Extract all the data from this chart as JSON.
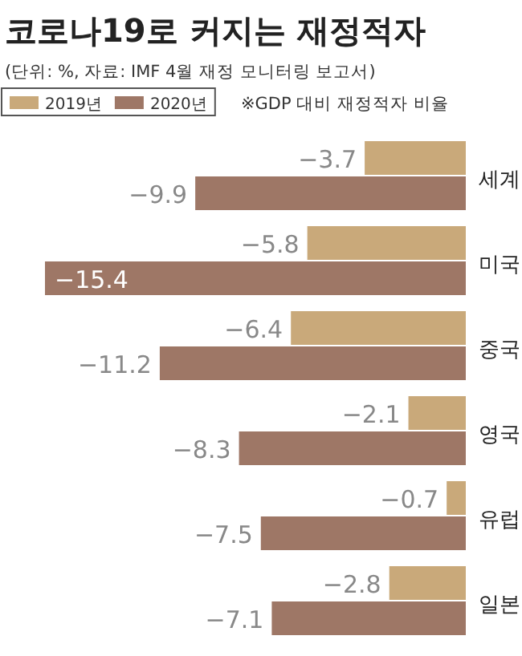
{
  "chart_data": {
    "type": "bar",
    "orientation": "horizontal",
    "title": "코로나19로 커지는 재정적자",
    "subtitle": "(단위: %, 자료: IMF 4월 재정 모니터링 보고서)",
    "annotations": [
      "※GDP 대비 재정적자 비율"
    ],
    "categories": [
      "세계",
      "미국",
      "중국",
      "영국",
      "유럽",
      "일본"
    ],
    "series": [
      {
        "name": "2019년",
        "color": "#c9a97a",
        "values": [
          -3.7,
          -5.8,
          -6.4,
          -2.1,
          -0.7,
          -2.8
        ]
      },
      {
        "name": "2020년",
        "color": "#9e7766",
        "values": [
          -9.9,
          -15.4,
          -11.2,
          -8.3,
          -7.5,
          -7.1
        ]
      }
    ],
    "data_labels": true,
    "legend": "top left"
  }
}
